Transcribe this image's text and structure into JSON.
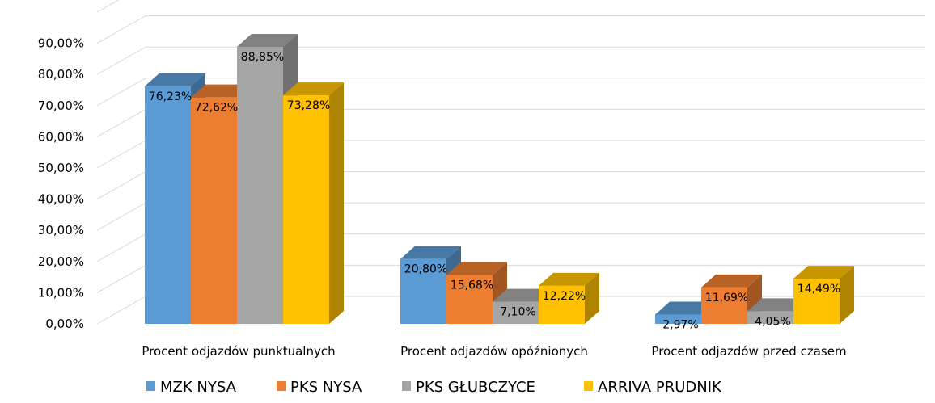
{
  "chart_data": {
    "type": "bar",
    "style": "3d-clustered-column",
    "categories": [
      "Procent odjazdów punktualnych",
      "Procent odjazdów opóźnionych",
      "Procent odjazdów przed czasem"
    ],
    "series": [
      {
        "name": "MZK NYSA",
        "color": "#5B9BD5",
        "values": [
          76.23,
          20.8,
          2.97
        ],
        "labels": [
          "76,23%",
          "20,80%",
          "2,97%"
        ]
      },
      {
        "name": "PKS NYSA",
        "color": "#ED7D31",
        "values": [
          72.62,
          15.68,
          11.69
        ],
        "labels": [
          "72,62%",
          "15,68%",
          "11,69%"
        ]
      },
      {
        "name": "PKS GŁUBCZYCE",
        "color": "#A5A5A5",
        "values": [
          88.85,
          7.1,
          4.05
        ],
        "labels": [
          "88,85%",
          "7,10%",
          "4,05%"
        ]
      },
      {
        "name": "ARRIVA PRUDNIK",
        "color": "#FFC000",
        "values": [
          73.28,
          12.22,
          14.49
        ],
        "labels": [
          "73,28%",
          "12,22%",
          "14,49%"
        ]
      }
    ],
    "yticks": [
      0,
      10,
      20,
      30,
      40,
      50,
      60,
      70,
      80,
      90
    ],
    "ytick_labels": [
      "0,00%",
      "10,00%",
      "20,00%",
      "30,00%",
      "40,00%",
      "50,00%",
      "60,00%",
      "70,00%",
      "80,00%",
      "90,00%"
    ],
    "ylim": [
      0,
      100
    ],
    "grid": true,
    "legend_position": "bottom",
    "title": "",
    "xlabel": "",
    "ylabel": ""
  }
}
